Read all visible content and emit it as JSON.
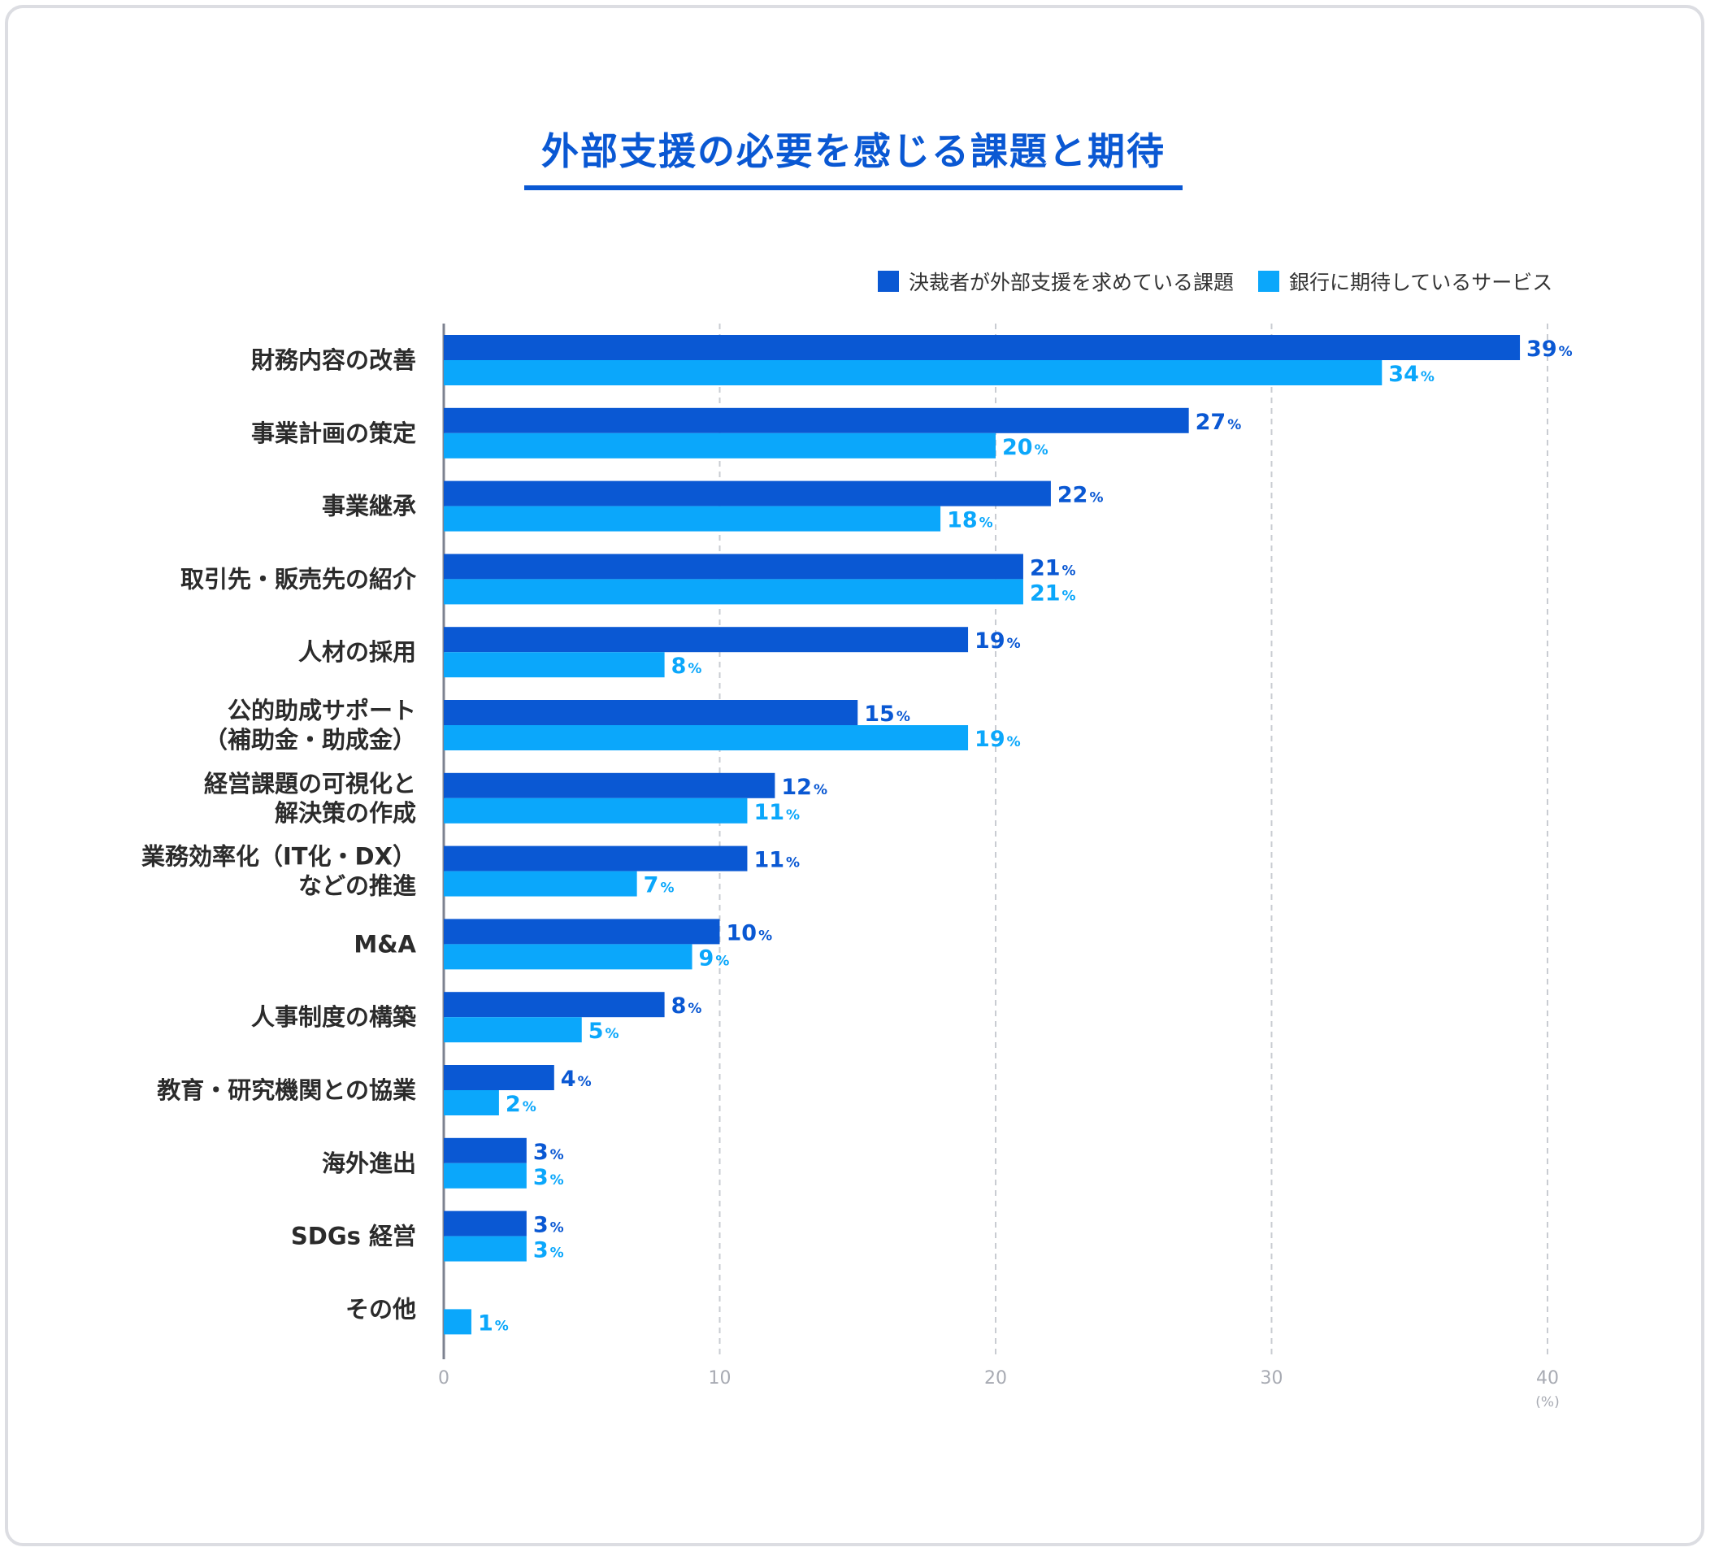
{
  "chart_data": {
    "type": "bar",
    "orientation": "horizontal",
    "title": "外部支援の必要を感じる課題と期待",
    "categories": [
      [
        "財務内容の改善"
      ],
      [
        "事業計画の策定"
      ],
      [
        "事業継承"
      ],
      [
        "取引先・販売先の紹介"
      ],
      [
        "人材の採用"
      ],
      [
        "公的助成サポート",
        "（補助金・助成金）"
      ],
      [
        "経営課題の可視化と",
        "解決策の作成"
      ],
      [
        "業務効率化（IT化・DX）",
        "などの推進"
      ],
      [
        "M&A"
      ],
      [
        "人事制度の構築"
      ],
      [
        "教育・研究機関との協業"
      ],
      [
        "海外進出"
      ],
      [
        "SDGs 経営"
      ],
      [
        "その他"
      ]
    ],
    "series": [
      {
        "name": "決裁者が外部支援を求めている課題",
        "color": "#0a58d3",
        "values": [
          39,
          27,
          22,
          21,
          19,
          15,
          12,
          11,
          10,
          8,
          4,
          3,
          3,
          0
        ]
      },
      {
        "name": "銀行に期待しているサービス",
        "color": "#0ba7fb",
        "values": [
          34,
          20,
          18,
          21,
          8,
          19,
          11,
          7,
          9,
          5,
          2,
          3,
          3,
          1
        ]
      }
    ],
    "value_suffix": "%",
    "xlim": [
      0,
      40
    ],
    "xticks": [
      0,
      10,
      20,
      30,
      40
    ],
    "x_unit": "(%)",
    "grid": "vertical-dashed",
    "legend_position": "top-right"
  }
}
